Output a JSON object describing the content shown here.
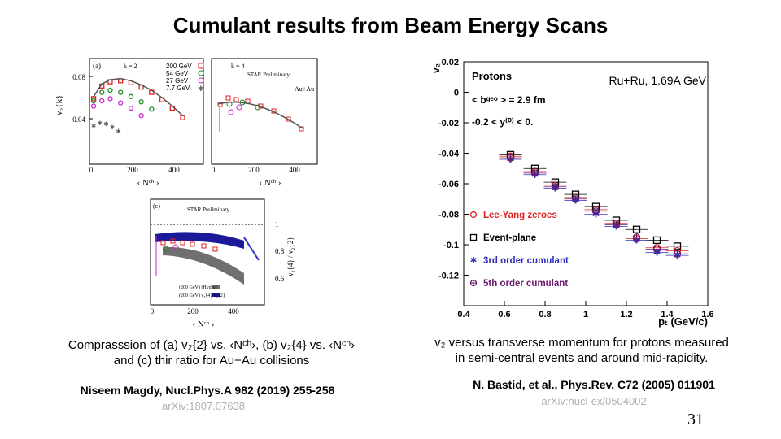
{
  "slide": {
    "title": "Cumulant results from Beam Energy Scans",
    "number": "31"
  },
  "left_figure": {
    "caption_line1": "Comprasssion of (a) v₂{2} vs. ‹Nᶜʰ›, (b) v₂{4} vs. ‹Nᶜʰ›",
    "caption_line2": "and (c) thir ratio for Au+Au collisions",
    "citation": "Niseem Magdy, Nucl.Phys.A 982 (2019) 255-258",
    "link": "arXiv:1807.07638",
    "panel_a": {
      "label": "(a)",
      "k_label": "k = 2",
      "ylabel": "v₂{k}",
      "xlabel": "‹ Nᶜʰ ›",
      "yticks": [
        "0.08",
        "0.04"
      ],
      "xticks": [
        "0",
        "200",
        "400"
      ],
      "legend": [
        "200 GeV",
        "54 GeV",
        "27 GeV",
        "7.7 GeV"
      ]
    },
    "panel_b": {
      "k_label": "k = 4",
      "prelim": "STAR Preliminary",
      "system": "Au+Au",
      "xlabel": "‹ Nᶜʰ ›",
      "xticks": [
        "0",
        "200",
        "400"
      ]
    },
    "panel_c": {
      "label": "(c)",
      "prelim": "STAR Preliminary",
      "ylabel": "v₂{4} / v₂{2}",
      "yticks": [
        "1",
        "0.8",
        "0.6"
      ],
      "xticks": [
        "0",
        "200",
        "400"
      ],
      "xlabel": "‹ Nᶜʰ ›",
      "legend": [
        "(200 GeV) [Hydro]",
        "(200 GeV) v₂{4}/v₂{2}"
      ]
    }
  },
  "right_figure": {
    "system": "Ru+Ru, 1.69A GeV",
    "particle": "Protons",
    "cut1": "< bᵍᵉᵒ > = 2.9 fm",
    "cut2": "-0.2 < y⁽⁰⁾ < 0.",
    "ylabel": "v₂",
    "xlabel": "pₜ (GeV/c)",
    "caption_line1": "v₂ versus transverse momentum for protons measured",
    "caption_line2": "in semi-central events and around mid-rapidity.",
    "citation": "N. Bastid, et al., Phys.Rev. C72 (2005) 011901",
    "link": "arXiv:nucl-ex/0504002"
  },
  "chart_data": [
    {
      "type": "scatter",
      "title": "",
      "xlabel": "pₜ (GeV/c)",
      "ylabel": "v₂",
      "xlim": [
        0.4,
        1.6
      ],
      "ylim": [
        -0.14,
        0.02
      ],
      "xticks": [
        "0.4",
        "0.6",
        "0.8",
        "1",
        "1.2",
        "1.4",
        "1.6"
      ],
      "yticks": [
        "0.02",
        "0",
        "-0.02",
        "-0.04",
        "-0.06",
        "-0.08",
        "-0.1",
        "-0.12"
      ],
      "grid": false,
      "legend_position": "bottom-left",
      "series": [
        {
          "name": "Lee-Yang zeroes",
          "color": "#e02020",
          "marker": "circle",
          "x": [
            0.63,
            0.75,
            0.85,
            0.95,
            1.05,
            1.15,
            1.25,
            1.35,
            1.45
          ],
          "y": [
            -0.042,
            -0.052,
            -0.061,
            -0.069,
            -0.077,
            -0.086,
            -0.096,
            -0.102,
            -0.104
          ]
        },
        {
          "name": "Event-plane",
          "color": "#000000",
          "marker": "square",
          "x": [
            0.63,
            0.75,
            0.85,
            0.95,
            1.05,
            1.15,
            1.25,
            1.35,
            1.45
          ],
          "y": [
            -0.041,
            -0.05,
            -0.059,
            -0.067,
            -0.075,
            -0.084,
            -0.09,
            -0.097,
            -0.101
          ]
        },
        {
          "name": "3rd order cumulant",
          "color": "#3030c0",
          "marker": "star",
          "x": [
            0.63,
            0.75,
            0.85,
            0.95,
            1.05,
            1.15,
            1.25,
            1.35,
            1.45
          ],
          "y": [
            -0.044,
            -0.054,
            -0.063,
            -0.071,
            -0.08,
            -0.088,
            -0.097,
            -0.105,
            -0.107
          ]
        },
        {
          "name": "5th order cumulant",
          "color": "#6a1a6a",
          "marker": "cross-circle",
          "x": [
            0.63,
            0.75,
            0.85,
            0.95,
            1.05,
            1.15,
            1.25,
            1.35,
            1.45
          ],
          "y": [
            -0.043,
            -0.053,
            -0.062,
            -0.07,
            -0.078,
            -0.087,
            -0.095,
            -0.103,
            -0.106
          ]
        }
      ]
    },
    {
      "type": "scatter",
      "title": "",
      "xlabel": "‹ Nᶜʰ ›",
      "ylabel": "v₂{k}",
      "xlim": [
        0,
        550
      ],
      "ylim": [
        0,
        0.1
      ],
      "xticks": [
        "0",
        "200",
        "400"
      ],
      "yticks": [
        "0.08",
        "0.04"
      ],
      "series": [
        {
          "name": "200 GeV",
          "color": "#e02020",
          "marker": "square",
          "x": [
            20,
            60,
            100,
            150,
            200,
            250,
            300,
            350,
            400,
            450
          ],
          "y": [
            0.062,
            0.074,
            0.078,
            0.079,
            0.077,
            0.073,
            0.068,
            0.061,
            0.053,
            0.044
          ]
        },
        {
          "name": "54 GeV",
          "color": "#1a8a1a",
          "marker": "circle",
          "x": [
            20,
            60,
            100,
            150,
            200,
            250,
            300
          ],
          "y": [
            0.06,
            0.068,
            0.07,
            0.068,
            0.064,
            0.059,
            0.052
          ]
        },
        {
          "name": "27 GeV",
          "color": "#d020d0",
          "marker": "circle",
          "x": [
            20,
            60,
            100,
            150,
            200,
            250
          ],
          "y": [
            0.055,
            0.06,
            0.062,
            0.058,
            0.053,
            0.046
          ]
        },
        {
          "name": "7.7 GeV",
          "color": "#606060",
          "marker": "star",
          "x": [
            20,
            50,
            80,
            110,
            140
          ],
          "y": [
            0.036,
            0.039,
            0.038,
            0.035,
            0.031
          ]
        }
      ]
    }
  ]
}
